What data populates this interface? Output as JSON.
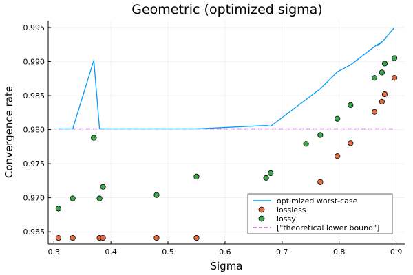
{
  "chart_data": {
    "type": "scatter",
    "title": "Geometric (optimized sigma)",
    "xlabel": "Sigma",
    "ylabel": "Convergence rate",
    "xlim": [
      0.29,
      0.915
    ],
    "ylim": [
      0.9632,
      0.996
    ],
    "x_ticks": [
      0.3,
      0.4,
      0.5,
      0.6,
      0.7,
      0.8,
      0.9
    ],
    "x_tick_labels": [
      "0.3",
      "0.4",
      "0.5",
      "0.6",
      "0.7",
      "0.8",
      "0.9"
    ],
    "y_ticks": [
      0.965,
      0.97,
      0.975,
      0.98,
      0.985,
      0.99,
      0.995
    ],
    "y_tick_labels": [
      "0.965",
      "0.970",
      "0.975",
      "0.980",
      "0.985",
      "0.990",
      "0.995"
    ],
    "grid": true,
    "legend_position": "bottom-right",
    "series": [
      {
        "name": "optimized worst-case",
        "kind": "line",
        "color": "#009af9",
        "x": [
          0.308,
          0.333,
          0.37,
          0.38,
          0.386,
          0.48,
          0.55,
          0.672,
          0.68,
          0.767,
          0.797,
          0.82,
          0.862,
          0.875,
          0.867,
          0.878,
          0.897
        ],
        "y": [
          0.9801,
          0.9801,
          0.9902,
          0.9801,
          0.9801,
          0.9801,
          0.9801,
          0.9806,
          0.9805,
          0.986,
          0.9885,
          0.9895,
          0.9922,
          0.9929,
          0.9923,
          0.9931,
          0.995
        ]
      },
      {
        "name": "lossless",
        "kind": "scatter",
        "color": "#e26f46",
        "x": [
          0.308,
          0.333,
          0.37,
          0.38,
          0.386,
          0.48,
          0.55,
          0.767,
          0.797,
          0.82,
          0.862,
          0.875,
          0.88,
          0.897
        ],
        "y": [
          0.9641,
          0.9641,
          0.9788,
          0.9641,
          0.9641,
          0.9641,
          0.9641,
          0.9723,
          0.9761,
          0.978,
          0.9826,
          0.9841,
          0.9852,
          0.9876
        ]
      },
      {
        "name": "lossy",
        "kind": "scatter",
        "color": "#3da44d",
        "x": [
          0.308,
          0.333,
          0.37,
          0.38,
          0.386,
          0.48,
          0.55,
          0.672,
          0.68,
          0.742,
          0.767,
          0.797,
          0.82,
          0.862,
          0.875,
          0.88,
          0.897
        ],
        "y": [
          0.9684,
          0.9699,
          0.9788,
          0.9699,
          0.9716,
          0.9704,
          0.9731,
          0.9729,
          0.9736,
          0.9779,
          0.9792,
          0.9816,
          0.9836,
          0.9876,
          0.9884,
          0.9897,
          0.9905
        ]
      },
      {
        "name": "[\"theoretical lower bound\"]",
        "kind": "dashed",
        "color": "#c271d2",
        "x": [
          0.308,
          0.897
        ],
        "y": [
          0.9801,
          0.9801
        ]
      }
    ]
  }
}
